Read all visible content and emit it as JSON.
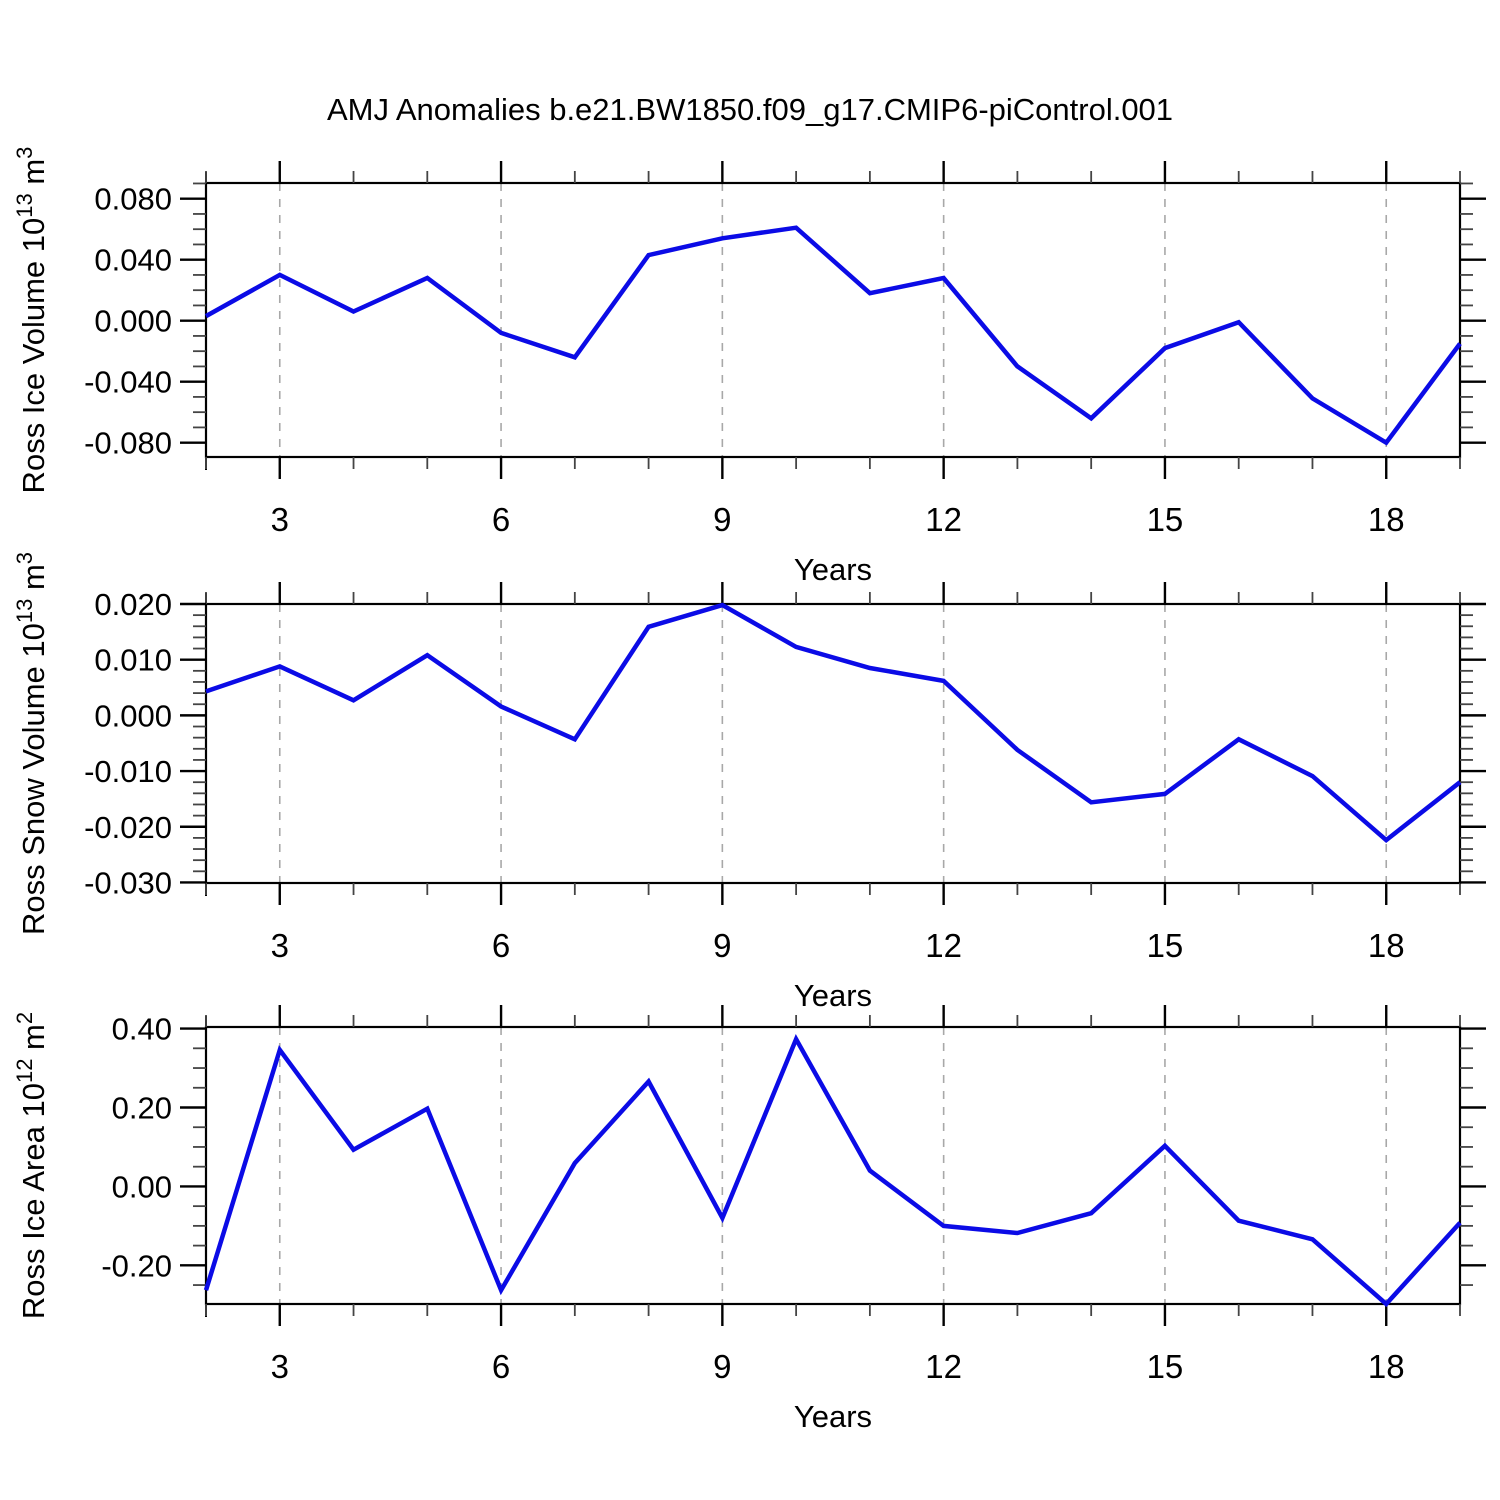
{
  "title": "AMJ Anomalies b.e21.BW1850.f09_g17.CMIP6-piControl.001",
  "colors": {
    "line": "#0b0be6",
    "grid": "#a8a8a8",
    "axis": "#000000",
    "minor_tick": "#444444",
    "text": "#000000",
    "background": "#ffffff"
  },
  "chart_data": [
    {
      "type": "line",
      "name": "ross-ice-volume",
      "ylabel": "Ross Ice Volume 10^13 m^3",
      "ylabel_parts": [
        {
          "text": "Ross Ice Volume 10"
        },
        {
          "sup": "13"
        },
        {
          "text": " m"
        },
        {
          "sup": "3"
        }
      ],
      "xlabel": "Years",
      "x": [
        2,
        3,
        4,
        5,
        6,
        7,
        8,
        9,
        10,
        11,
        12,
        13,
        14,
        15,
        16,
        17,
        18,
        19
      ],
      "values": [
        0.003,
        0.03,
        0.006,
        0.028,
        -0.008,
        -0.024,
        0.043,
        0.054,
        0.061,
        0.018,
        0.028,
        -0.03,
        -0.064,
        -0.018,
        -0.001,
        -0.051,
        -0.08,
        -0.015
      ],
      "ylim": [
        -0.0894,
        0.0903
      ],
      "yticks": [
        0.08,
        0.04,
        0,
        -0.04,
        -0.08
      ],
      "ytick_labels": [
        "0.080",
        "0.040",
        "0.000",
        "-0.040",
        "-0.080"
      ],
      "y_minor_step": 0.01,
      "x_major_ticks": [
        3,
        6,
        9,
        12,
        15,
        18
      ],
      "x_minor_step": 1,
      "xlim": [
        2,
        19
      ],
      "grid": "vertical-dashed",
      "legend": "none"
    },
    {
      "type": "line",
      "name": "ross-snow-volume",
      "ylabel": "Ross Snow Volume 10^13 m^3",
      "ylabel_parts": [
        {
          "text": "Ross Snow Volume 10"
        },
        {
          "sup": "13"
        },
        {
          "text": " m"
        },
        {
          "sup": "3"
        }
      ],
      "xlabel": "Years",
      "x": [
        2,
        3,
        4,
        5,
        6,
        7,
        8,
        9,
        10,
        11,
        12,
        13,
        14,
        15,
        16,
        17,
        18,
        19
      ],
      "values": [
        0.0043,
        0.0088,
        0.0027,
        0.0108,
        0.0016,
        -0.0043,
        0.0159,
        0.0198,
        0.0123,
        0.0085,
        0.0062,
        -0.0062,
        -0.0156,
        -0.0141,
        -0.0043,
        -0.0109,
        -0.0224,
        -0.012
      ],
      "ylim": [
        -0.0301,
        0.02
      ],
      "yticks": [
        0.02,
        0.01,
        0,
        -0.01,
        -0.02,
        -0.03
      ],
      "ytick_labels": [
        "0.020",
        "0.010",
        "0.000",
        "-0.010",
        "-0.020",
        "-0.030"
      ],
      "y_minor_step": 0.002,
      "x_major_ticks": [
        3,
        6,
        9,
        12,
        15,
        18
      ],
      "x_minor_step": 1,
      "xlim": [
        2,
        19
      ],
      "grid": "vertical-dashed",
      "legend": "none"
    },
    {
      "type": "line",
      "name": "ross-ice-area",
      "ylabel": "Ross Ice Area 10^12 m^2",
      "ylabel_parts": [
        {
          "text": "Ross Ice Area 10"
        },
        {
          "sup": "12"
        },
        {
          "text": " m"
        },
        {
          "sup": "2"
        }
      ],
      "xlabel": "Years",
      "x": [
        2,
        3,
        4,
        5,
        6,
        7,
        8,
        9,
        10,
        11,
        12,
        13,
        14,
        15,
        16,
        17,
        18,
        19
      ],
      "values": [
        -0.263,
        0.346,
        0.093,
        0.197,
        -0.263,
        0.059,
        0.266,
        -0.08,
        0.373,
        0.04,
        -0.1,
        -0.118,
        -0.068,
        0.103,
        -0.087,
        -0.134,
        -0.298,
        -0.092
      ],
      "ylim": [
        -0.298,
        0.404
      ],
      "yticks": [
        0.4,
        0.2,
        0.0,
        -0.2
      ],
      "ytick_labels": [
        "0.40",
        "0.20",
        "0.00",
        "-0.20"
      ],
      "y_minor_step": 0.05,
      "x_major_ticks": [
        3,
        6,
        9,
        12,
        15,
        18
      ],
      "x_minor_step": 1,
      "xlim": [
        2,
        19
      ],
      "grid": "vertical-dashed",
      "legend": "none"
    }
  ]
}
